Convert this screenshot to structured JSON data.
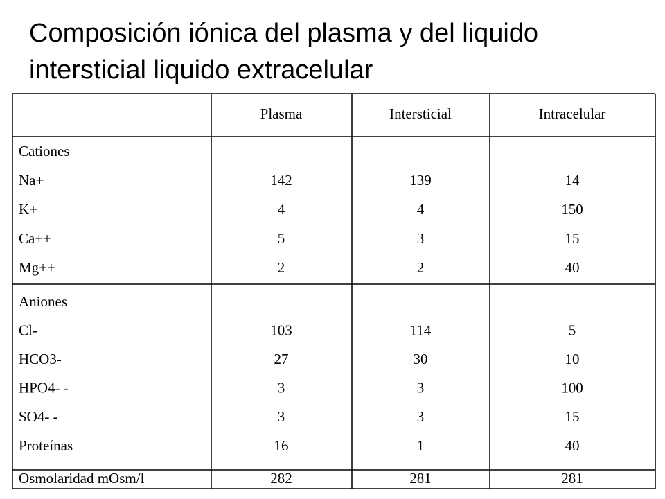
{
  "title": "Composición iónica del plasma y del liquido intersticial liquido extracelular",
  "table": {
    "columns": [
      "Plasma",
      "Intersticial",
      "Intracelular"
    ],
    "groups": [
      {
        "label": "Cationes",
        "rows": [
          {
            "name": "Na+",
            "values": [
              142,
              139,
              14
            ]
          },
          {
            "name": "K+",
            "values": [
              4,
              4,
              150
            ]
          },
          {
            "name": "Ca++",
            "values": [
              5,
              3,
              15
            ]
          },
          {
            "name": "Mg++",
            "values": [
              2,
              2,
              40
            ]
          }
        ]
      },
      {
        "label": "Aniones",
        "rows": [
          {
            "name": "Cl-",
            "values": [
              103,
              114,
              5
            ]
          },
          {
            "name": "HCO3-",
            "values": [
              27,
              30,
              10
            ]
          },
          {
            "name": "HPO4- -",
            "values": [
              3,
              3,
              100
            ]
          },
          {
            "name": "SO4- -",
            "values": [
              3,
              3,
              15
            ]
          },
          {
            "name": "Proteínas",
            "values": [
              16,
              1,
              40
            ]
          }
        ]
      }
    ],
    "total": {
      "name": "Osmolaridad mOsm/l",
      "values": [
        282,
        281,
        281
      ]
    }
  }
}
